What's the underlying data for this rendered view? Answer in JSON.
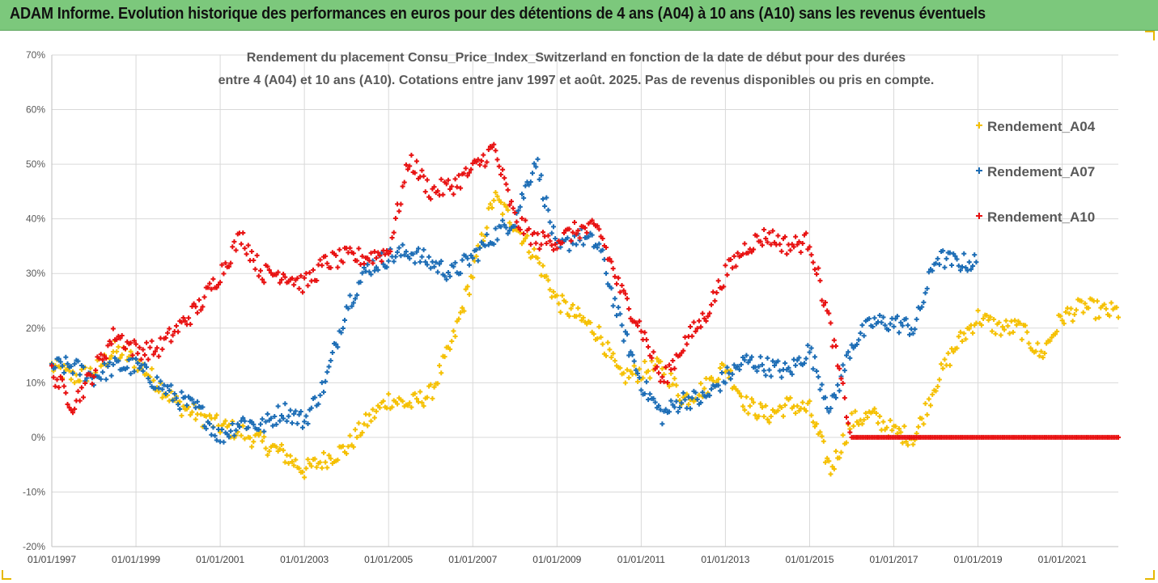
{
  "banner": {
    "title": "ADAM Informe. Evolution historique des performances en euros pour des détentions de 4 ans (A04) à 10 ans (A10) sans les revenus éventuels"
  },
  "chart_data": {
    "type": "scatter",
    "title_line1": "Rendement du placement Consu_Price_Index_Switzerland en fonction de la date de début pour des durées",
    "title_line2": "entre 4 (A04) et 10 ans (A10). Cotations entre janv 1997 et août. 2025. Pas de revenus disponibles ou pris en compte.",
    "xlabel": "",
    "ylabel": "",
    "x_range": [
      "1997-01-01",
      "2022-05-01"
    ],
    "y_range": [
      -0.2,
      0.7
    ],
    "y_ticks": [
      "70%",
      "60%",
      "50%",
      "40%",
      "30%",
      "20%",
      "10%",
      "0%",
      "-10%",
      "-20%"
    ],
    "x_ticks": [
      "01/01/1997",
      "01/01/1999",
      "01/01/2001",
      "01/01/2003",
      "01/01/2005",
      "01/01/2007",
      "01/01/2009",
      "01/01/2011",
      "01/01/2013",
      "01/01/2015",
      "01/01/2017",
      "01/01/2019",
      "01/01/2021"
    ],
    "grid": true,
    "legend_position": "right",
    "marker": "+",
    "series": [
      {
        "name": "Rendement_A04",
        "color": "#f5c000",
        "x": [
          "1997-01",
          "1997-07",
          "1998-01",
          "1998-07",
          "1999-01",
          "1999-07",
          "2000-01",
          "2000-07",
          "2001-01",
          "2001-07",
          "2002-01",
          "2002-07",
          "2003-01",
          "2003-07",
          "2004-01",
          "2004-07",
          "2005-01",
          "2005-07",
          "2006-01",
          "2006-07",
          "2007-01",
          "2007-07",
          "2008-01",
          "2008-07",
          "2009-01",
          "2009-07",
          "2010-01",
          "2010-07",
          "2011-01",
          "2011-07",
          "2012-01",
          "2012-07",
          "2013-01",
          "2013-07",
          "2014-01",
          "2014-07",
          "2015-01",
          "2015-07",
          "2016-01",
          "2016-07",
          "2017-01",
          "2017-07",
          "2018-01",
          "2018-07",
          "2019-01",
          "2019-07",
          "2020-01",
          "2020-07",
          "2021-01",
          "2021-07",
          "2022-01"
        ],
        "values": [
          0.13,
          0.11,
          0.12,
          0.16,
          0.14,
          0.1,
          0.06,
          0.04,
          0.02,
          0.01,
          -0.01,
          -0.03,
          -0.06,
          -0.04,
          -0.02,
          0.03,
          0.07,
          0.06,
          0.08,
          0.17,
          0.3,
          0.44,
          0.39,
          0.33,
          0.25,
          0.22,
          0.19,
          0.11,
          0.12,
          0.13,
          0.07,
          0.09,
          0.13,
          0.06,
          0.04,
          0.06,
          0.05,
          -0.06,
          0.03,
          0.04,
          0.01,
          0.0,
          0.1,
          0.17,
          0.22,
          0.2,
          0.2,
          0.15,
          0.22,
          0.24,
          0.23
        ]
      },
      {
        "name": "Rendement_A07",
        "color": "#1b6cb5",
        "x": [
          "1997-01",
          "1997-07",
          "1998-01",
          "1998-07",
          "1999-01",
          "1999-07",
          "2000-01",
          "2000-07",
          "2001-01",
          "2001-07",
          "2002-01",
          "2002-07",
          "2003-01",
          "2003-07",
          "2004-01",
          "2004-07",
          "2005-01",
          "2005-07",
          "2006-01",
          "2006-07",
          "2007-01",
          "2007-07",
          "2008-01",
          "2008-07",
          "2009-01",
          "2009-07",
          "2010-01",
          "2010-07",
          "2011-01",
          "2011-07",
          "2012-01",
          "2012-07",
          "2013-01",
          "2013-07",
          "2014-01",
          "2014-07",
          "2015-01",
          "2015-07",
          "2016-01",
          "2016-07",
          "2017-01",
          "2017-07",
          "2018-01",
          "2018-07"
        ],
        "values": [
          0.13,
          0.13,
          0.11,
          0.13,
          0.13,
          0.1,
          0.07,
          0.05,
          0.0,
          0.03,
          0.02,
          0.05,
          0.03,
          0.1,
          0.24,
          0.31,
          0.33,
          0.34,
          0.32,
          0.3,
          0.33,
          0.37,
          0.4,
          0.51,
          0.34,
          0.37,
          0.35,
          0.21,
          0.1,
          0.04,
          0.07,
          0.07,
          0.11,
          0.14,
          0.13,
          0.12,
          0.16,
          0.05,
          0.17,
          0.21,
          0.21,
          0.2,
          0.33,
          0.32
        ]
      },
      {
        "name": "Rendement_A10",
        "color": "#e81010",
        "x": [
          "1997-01",
          "1997-07",
          "1998-01",
          "1998-07",
          "1999-01",
          "1999-07",
          "2000-01",
          "2000-07",
          "2001-01",
          "2001-07",
          "2002-01",
          "2002-07",
          "2003-01",
          "2003-07",
          "2004-01",
          "2004-07",
          "2005-01",
          "2005-07",
          "2006-01",
          "2006-07",
          "2007-01",
          "2007-07",
          "2008-01",
          "2008-07",
          "2009-01",
          "2009-07",
          "2010-01",
          "2010-07",
          "2011-01",
          "2011-07",
          "2012-01",
          "2012-07",
          "2013-01",
          "2013-07",
          "2014-01",
          "2014-07",
          "2015-01",
          "2015-07",
          "2016-01",
          "2016-07",
          "2017-01",
          "2017-07",
          "2018-01",
          "2018-07",
          "2019-01",
          "2019-07",
          "2020-01",
          "2020-07",
          "2021-01",
          "2021-07",
          "2022-01"
        ],
        "values": [
          0.12,
          0.06,
          0.12,
          0.19,
          0.16,
          0.16,
          0.2,
          0.24,
          0.3,
          0.37,
          0.3,
          0.3,
          0.28,
          0.32,
          0.33,
          0.33,
          0.34,
          0.51,
          0.45,
          0.46,
          0.49,
          0.53,
          0.4,
          0.36,
          0.36,
          0.38,
          0.38,
          0.27,
          0.2,
          0.1,
          0.17,
          0.22,
          0.3,
          0.35,
          0.37,
          0.35,
          0.36,
          0.2,
          0.0,
          0.0,
          0.0,
          0.0,
          0.0,
          0.0,
          0.0,
          0.0,
          0.0,
          0.0,
          0.0,
          0.0,
          0.0
        ]
      }
    ]
  }
}
